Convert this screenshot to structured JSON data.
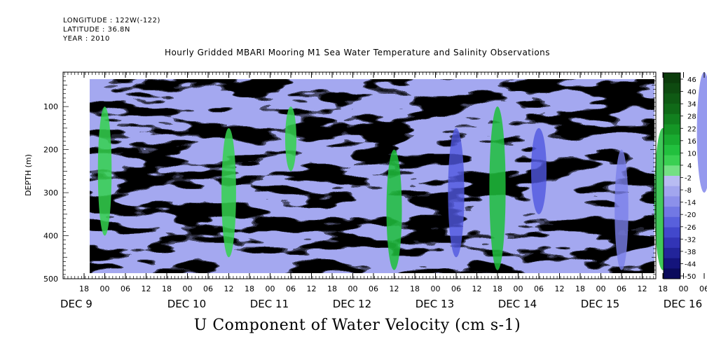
{
  "meta": {
    "longitude": "LONGITUDE : 122W(-122)",
    "latitude": "LATITUDE : 36.8N",
    "year": "YEAR : 2010"
  },
  "chart_data": {
    "type": "heatmap",
    "title": "Hourly Gridded MBARI Mooring M1 Sea Water Temperature and Salinity Observations",
    "xlabel": "U Component of Water Velocity (cm s-1)",
    "ylabel": "DEPTH (m)",
    "y_ticks": [
      100,
      200,
      300,
      400,
      500
    ],
    "ylim": [
      500,
      20
    ],
    "hour_ticks": [
      "18",
      "00",
      "06",
      "12",
      "18",
      "00",
      "06",
      "12",
      "18",
      "00",
      "06",
      "12",
      "18",
      "00",
      "06",
      "12",
      "18",
      "00",
      "06",
      "12",
      "18",
      "00",
      "06",
      "12",
      "18",
      "00",
      "06",
      "12",
      "18",
      "00",
      "06",
      "12",
      "18",
      "00",
      "06",
      "12"
    ],
    "day_labels": [
      "DEC  9",
      "DEC 10",
      "DEC 11",
      "DEC 12",
      "DEC 13",
      "DEC 14",
      "DEC 15",
      "DEC 16"
    ],
    "colorbar": {
      "levels": [
        "46",
        "40",
        "34",
        "28",
        "22",
        "16",
        "10",
        "4",
        "-2",
        "-8",
        "-14",
        "-20",
        "-26",
        "-32",
        "-38",
        "-44",
        "-50"
      ],
      "min": -50,
      "max": 50
    },
    "velocity_bands": [
      {
        "time": "DEC 9 00",
        "depth_range": [
          100,
          400
        ],
        "value": 16
      },
      {
        "time": "DEC 10 12",
        "depth_range": [
          150,
          450
        ],
        "value": 18
      },
      {
        "time": "DEC 11 06",
        "depth_range": [
          100,
          250
        ],
        "value": 10
      },
      {
        "time": "DEC 12 12",
        "depth_range": [
          200,
          480
        ],
        "value": 20
      },
      {
        "time": "DEC 13 06",
        "depth_range": [
          150,
          450
        ],
        "value": -22
      },
      {
        "time": "DEC 13 18",
        "depth_range": [
          100,
          480
        ],
        "value": 22
      },
      {
        "time": "DEC 14 06",
        "depth_range": [
          150,
          350
        ],
        "value": -20
      },
      {
        "time": "DEC 15 06",
        "depth_range": [
          200,
          480
        ],
        "value": -16
      },
      {
        "time": "DEC 15 18",
        "depth_range": [
          150,
          480
        ],
        "value": 24
      },
      {
        "time": "DEC 16 06",
        "depth_range": [
          20,
          300
        ],
        "value": -18
      }
    ]
  }
}
